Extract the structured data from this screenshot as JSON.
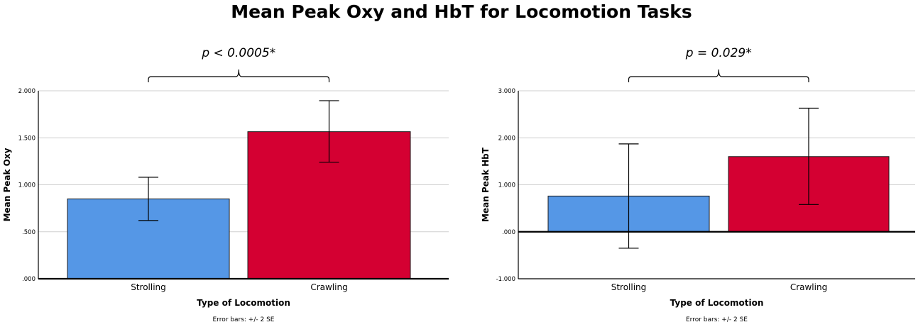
{
  "title": "Mean Peak Oxy and HbT for Locomotion Tasks",
  "colors": {
    "strolling": "#5597e6",
    "crawling": "#d40032"
  },
  "chart_data": [
    {
      "type": "bar",
      "categories": [
        "Strolling",
        "Crawling"
      ],
      "values": [
        0.85,
        1.565
      ],
      "error_low": [
        0.62,
        1.24
      ],
      "error_high": [
        1.08,
        1.895
      ],
      "ylabel": "Mean Peak Oxy",
      "xlabel": "Type of Locomotion",
      "ylim": [
        0,
        2.0
      ],
      "yticks": [
        0,
        0.5,
        1.0,
        1.5,
        2.0
      ],
      "ytick_labels": [
        ".000",
        ".500",
        "1.000",
        "1.500",
        "2.000"
      ],
      "grid": true,
      "annotation": "p < 0.0005*",
      "note": "Error bars: +/- 2 SE"
    },
    {
      "type": "bar",
      "categories": [
        "Strolling",
        "Crawling"
      ],
      "values": [
        0.76,
        1.6
      ],
      "error_low": [
        -0.35,
        0.58
      ],
      "error_high": [
        1.87,
        2.63
      ],
      "ylabel": "Mean Peak HbT",
      "xlabel": "Type of Locomotion",
      "ylim": [
        -1.0,
        3.0
      ],
      "yticks": [
        -1.0,
        0,
        1.0,
        2.0,
        3.0
      ],
      "ytick_labels": [
        "-1.000",
        ".000",
        "1.000",
        "2.000",
        "3.000"
      ],
      "grid": true,
      "annotation": "p = 0.029*",
      "note": "Error bars: +/- 2 SE"
    }
  ]
}
